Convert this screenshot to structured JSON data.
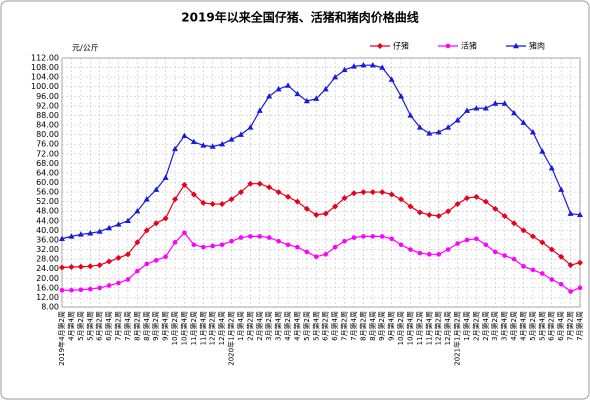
{
  "chart_data": {
    "type": "line",
    "title": "2019年以来全国仔猪、活猪和猪肉价格曲线",
    "y_unit": "元/公斤",
    "categories": [
      "2019年4月第2周",
      "4月第4周",
      "5月第2周",
      "5月第4周",
      "6月第2周",
      "6月第4周",
      "7月第2周",
      "7月第4周",
      "8月第2周",
      "8月第4周",
      "9月第2周",
      "9月第4周",
      "10月第2周",
      "10月第4周",
      "11月第2周",
      "11月第4周",
      "12月第2周",
      "12月第4周",
      "2020年1月第2周",
      "1月第4周",
      "2月第2周",
      "2月第4周",
      "3月第2周",
      "3月第4周",
      "4月第2周",
      "4月第4周",
      "5月第2周",
      "5月第4周",
      "6月第2周",
      "6月第4周",
      "7月第2周",
      "7月第4周",
      "8月第2周",
      "8月第4周",
      "9月第2周",
      "9月第4周",
      "10月第2周",
      "10月第4周",
      "11月第2周",
      "11月第4周",
      "12月第2周",
      "12月第4周",
      "2021年1月第2周",
      "1月第4周",
      "2月第2周",
      "2月第4周",
      "3月第2周",
      "3月第4周",
      "4月第2周",
      "4月第4周",
      "5月第2周",
      "5月第4周",
      "6月第2周",
      "6月第4周",
      "7月第2周",
      "7月第4周"
    ],
    "series": [
      {
        "name": "仔猪",
        "color": "#e8001c",
        "marker": "diamond",
        "values": [
          24.5,
          24.7,
          24.8,
          25,
          25.5,
          27,
          28.5,
          30,
          35,
          40,
          43,
          45,
          53,
          59,
          55,
          51.5,
          51,
          51,
          53,
          56,
          59.5,
          59.5,
          58,
          56,
          54,
          52,
          49,
          46.5,
          47,
          50,
          53.5,
          55.5,
          56,
          56,
          56,
          55,
          53,
          50,
          47.5,
          46.5,
          46,
          48,
          51,
          53.5,
          54,
          52,
          49,
          46,
          43,
          40,
          37.5,
          35,
          32,
          29,
          25.5,
          26.5
        ]
      },
      {
        "name": "活猪",
        "color": "#ff00ff",
        "marker": "circle",
        "values": [
          15,
          15,
          15.2,
          15.5,
          16,
          17,
          18,
          19.5,
          23,
          26,
          27.5,
          29,
          35,
          39,
          34,
          33,
          33.5,
          34,
          35.5,
          37,
          37.5,
          37.5,
          37,
          35.5,
          34,
          33,
          31,
          29,
          30,
          33,
          35.5,
          37,
          37.5,
          37.5,
          37.5,
          36.5,
          34,
          32,
          30.5,
          30,
          30,
          32,
          34.5,
          36,
          36.5,
          34,
          31,
          29.5,
          28,
          25,
          23.5,
          22,
          19.5,
          17.5,
          14.5,
          16
        ]
      },
      {
        "name": "猪肉",
        "color": "#1a1adb",
        "marker": "triangle",
        "values": [
          36.5,
          37.5,
          38.3,
          38.8,
          39.5,
          41,
          42.5,
          44,
          48,
          53,
          57,
          62,
          74,
          79.5,
          77,
          75.5,
          75,
          76,
          78,
          80,
          83,
          90,
          96,
          99,
          100.5,
          97,
          94,
          95,
          99,
          104,
          107,
          108.5,
          109,
          109,
          108,
          103,
          96,
          88,
          83,
          80.5,
          81,
          83,
          86,
          90,
          91,
          91,
          93,
          93,
          89,
          85,
          81,
          73,
          66,
          57,
          47,
          46.5
        ]
      }
    ],
    "ylim": [
      8,
      112
    ],
    "yticks": [
      {
        "value": 8,
        "label": "8.00"
      },
      {
        "value": 12,
        "label": "12.00"
      },
      {
        "value": 16,
        "label": "16.00"
      },
      {
        "value": 20,
        "label": "20.00"
      },
      {
        "value": 24,
        "label": "24.00"
      },
      {
        "value": 28,
        "label": "28.00"
      },
      {
        "value": 32,
        "label": "32.00"
      },
      {
        "value": 36,
        "label": "36.00"
      },
      {
        "value": 40,
        "label": "40.00"
      },
      {
        "value": 44,
        "label": "44.00"
      },
      {
        "value": 48,
        "label": "48.00"
      },
      {
        "value": 52,
        "label": "52.00"
      },
      {
        "value": 56,
        "label": "56.00"
      },
      {
        "value": 60,
        "label": "60.00"
      },
      {
        "value": 64,
        "label": "64.00"
      },
      {
        "value": 68,
        "label": "68.00"
      },
      {
        "value": 72,
        "label": "72.00"
      },
      {
        "value": 76,
        "label": "76.00"
      },
      {
        "value": 80,
        "label": "80.00"
      },
      {
        "value": 84,
        "label": "84.00"
      },
      {
        "value": 88,
        "label": "88.00"
      },
      {
        "value": 92,
        "label": "92.00"
      },
      {
        "value": 96,
        "label": "96.00"
      },
      {
        "value": 100,
        "label": "100.00"
      },
      {
        "value": 104,
        "label": "104.00"
      },
      {
        "value": 108,
        "label": "108.00"
      },
      {
        "value": 112,
        "label": "112.00"
      }
    ],
    "grid": true,
    "legend": "top-right"
  }
}
